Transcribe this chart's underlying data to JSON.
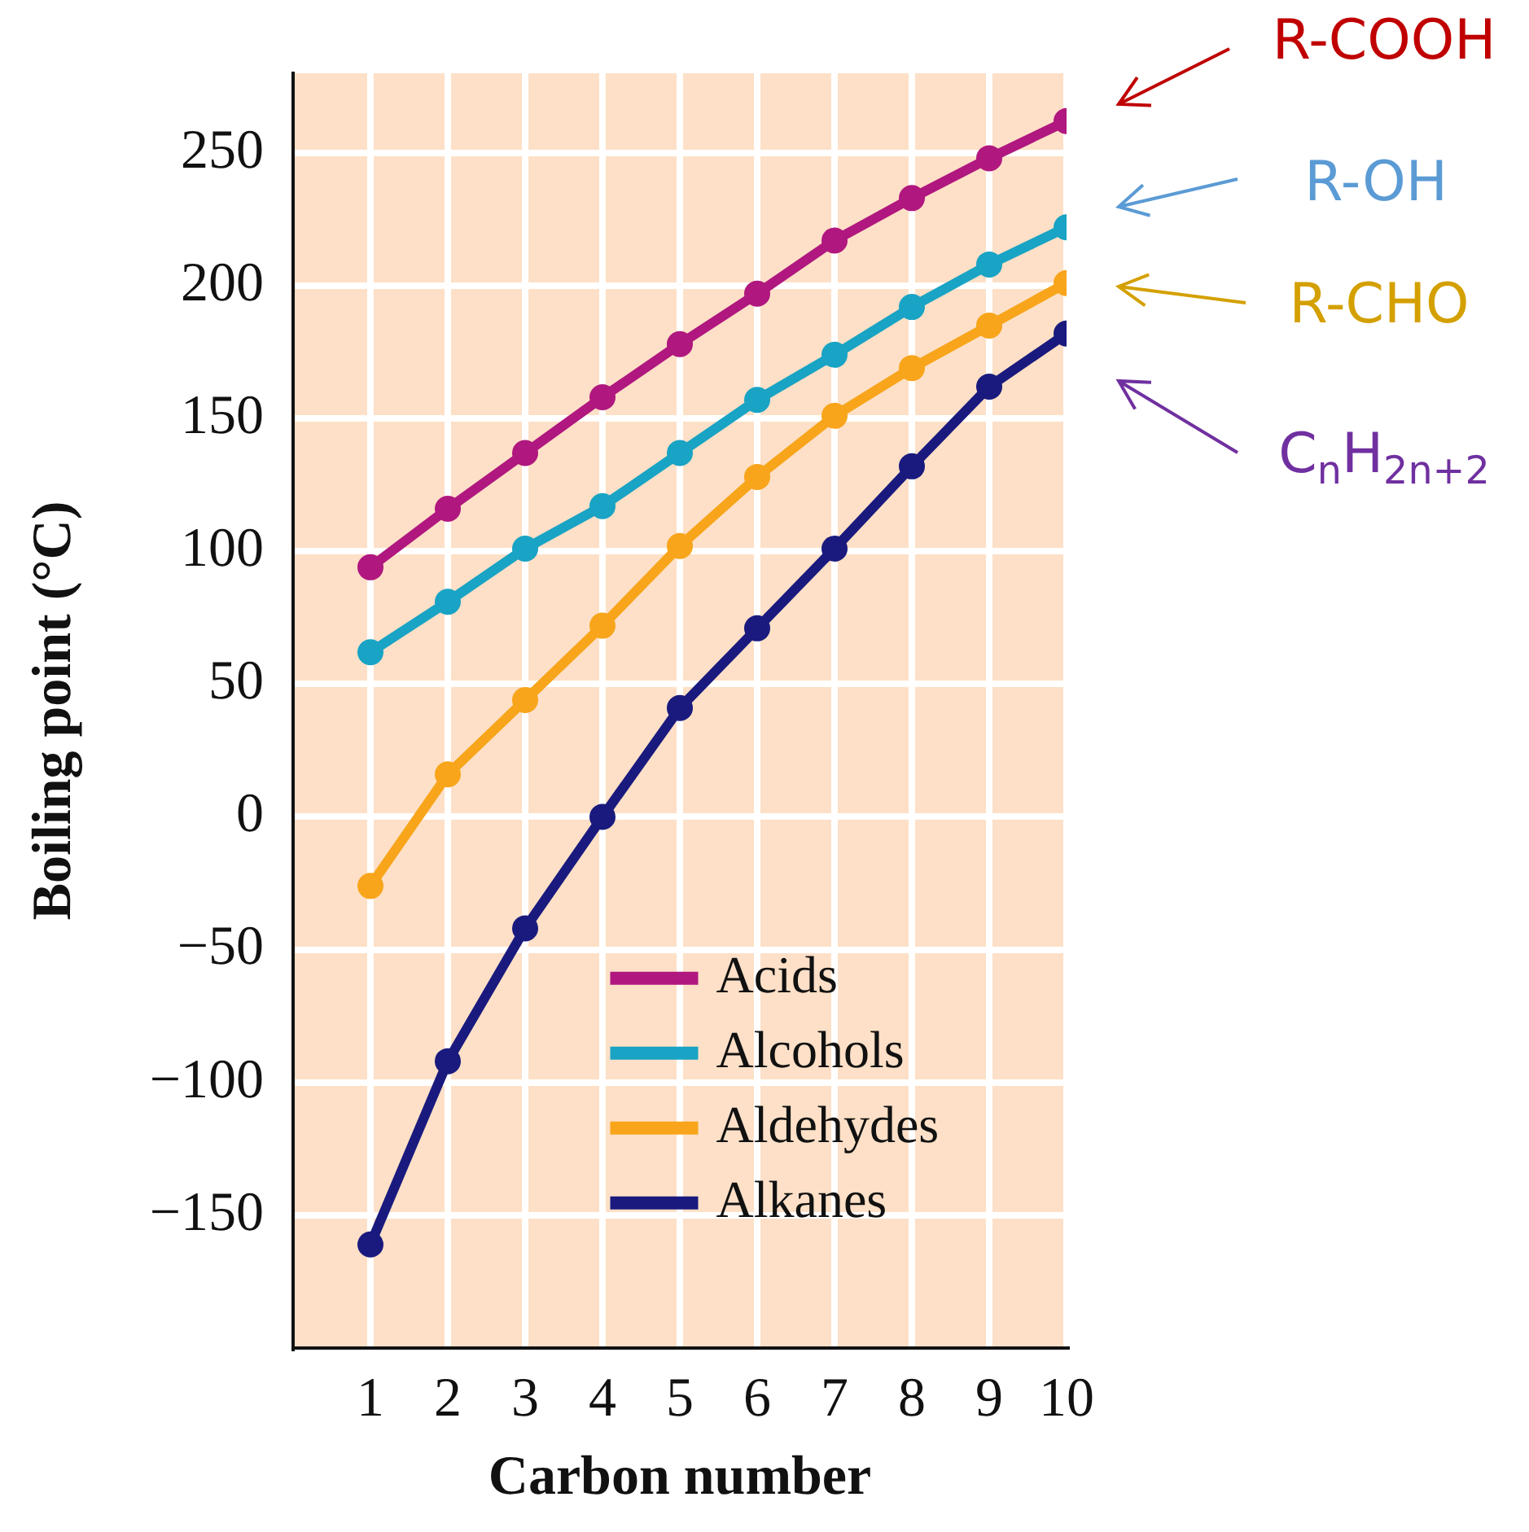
{
  "chart_data": {
    "type": "line",
    "xlabel": "Carbon number",
    "ylabel": "Boiling point (°C)",
    "x": [
      1,
      2,
      3,
      4,
      5,
      6,
      7,
      8,
      9,
      10
    ],
    "series": [
      {
        "name": "Acids",
        "color": "#b0177f",
        "values": [
          94,
          116,
          137,
          158,
          178,
          197,
          217,
          233,
          248,
          262
        ]
      },
      {
        "name": "Alcohols",
        "color": "#19a3c4",
        "values": [
          62,
          81,
          101,
          117,
          137,
          157,
          174,
          192,
          208,
          222
        ]
      },
      {
        "name": "Aldehydes",
        "color": "#f8a51b",
        "values": [
          -26,
          16,
          44,
          72,
          102,
          128,
          151,
          169,
          185,
          201
        ]
      },
      {
        "name": "Alkanes",
        "color": "#1a1a7e",
        "values": [
          -161,
          -92,
          -42,
          0,
          41,
          71,
          101,
          132,
          162,
          182
        ]
      }
    ],
    "xlim": [
      0,
      10
    ],
    "xticks": [
      1,
      2,
      3,
      4,
      5,
      6,
      7,
      8,
      9,
      10
    ],
    "ylim": [
      -200,
      280
    ],
    "yticks": [
      {
        "value": -150,
        "label": "−150"
      },
      {
        "value": -100,
        "label": "−100"
      },
      {
        "value": -50,
        "label": "−50"
      },
      0,
      50,
      100,
      150,
      200,
      250
    ],
    "annotations": [
      "R-COOH",
      "R-OH",
      "R-CHO",
      "C$_{n}$H$_{2n+2}$"
    ],
    "grid": true,
    "legend": "bottom",
    "marker": "circle",
    "line_style": "solid"
  }
}
